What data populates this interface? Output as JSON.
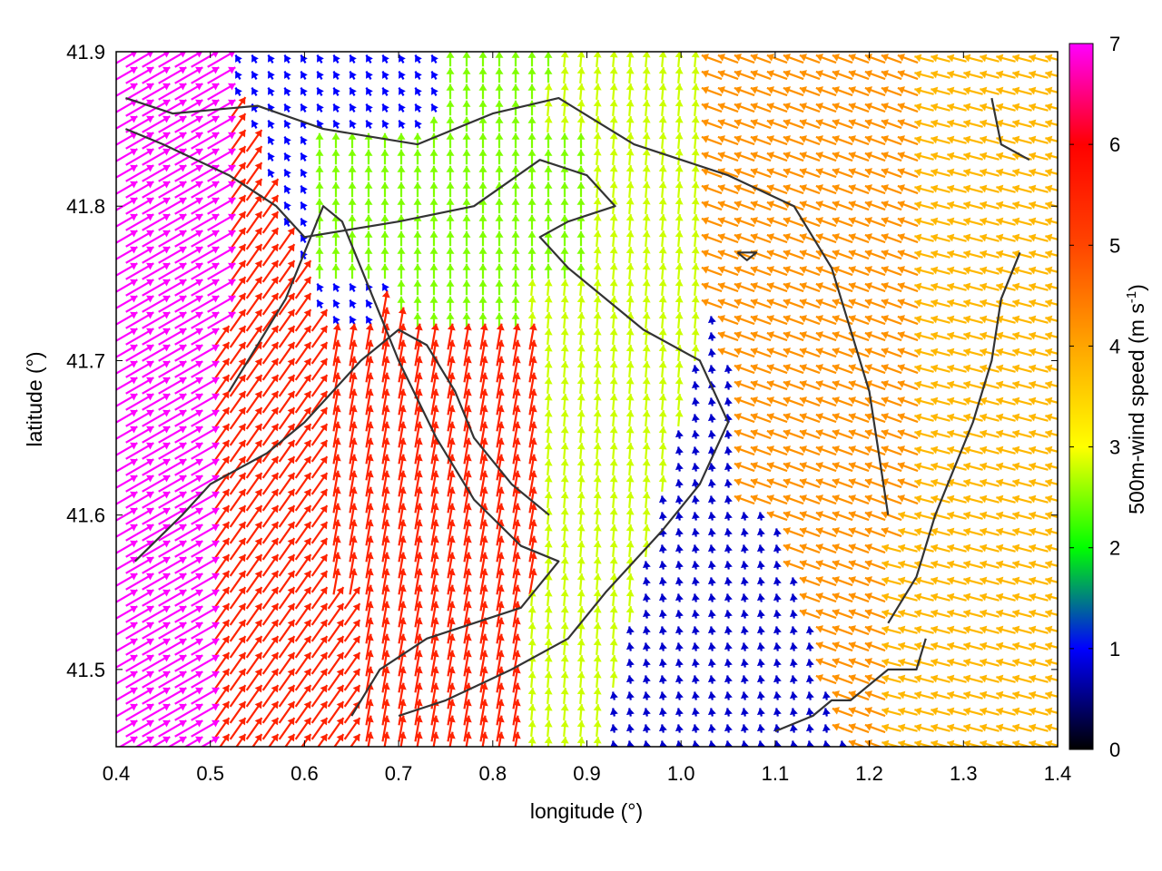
{
  "chart_data": {
    "type": "quiver",
    "xlabel": "longitude (°)",
    "ylabel": "latitude (°)",
    "xlim": [
      0.4,
      1.4
    ],
    "ylim": [
      41.45,
      41.9
    ],
    "xticks": [
      0.4,
      0.5,
      0.6,
      0.7,
      0.8,
      0.9,
      1.0,
      1.1,
      1.2,
      1.3,
      1.4
    ],
    "yticks": [
      41.5,
      41.6,
      41.7,
      41.8,
      41.9
    ],
    "xtick_labels": [
      "0.4",
      "0.5",
      "0.6",
      "0.7",
      "0.8",
      "0.9",
      "1.0",
      "1.1",
      "1.2",
      "1.3",
      "1.4"
    ],
    "ytick_labels": [
      "41.5",
      "41.6",
      "41.7",
      "41.8",
      "41.9"
    ],
    "grid": false,
    "colorbar": {
      "label_main": "500m-wind speed (m s",
      "label_sup": "-1",
      "label_end": ")",
      "range": [
        0,
        7
      ],
      "ticks": [
        0,
        1,
        2,
        3,
        4,
        5,
        6,
        7
      ],
      "tick_labels": [
        "0",
        "1",
        "2",
        "3",
        "4",
        "5",
        "6",
        "7"
      ],
      "colormap": [
        {
          "value": 0,
          "color": "#000000"
        },
        {
          "value": 1,
          "color": "#0000ff"
        },
        {
          "value": 1.5,
          "color": "#008080"
        },
        {
          "value": 2,
          "color": "#00ff00"
        },
        {
          "value": 3,
          "color": "#ffff00"
        },
        {
          "value": 4,
          "color": "#ffa500"
        },
        {
          "value": 5,
          "color": "#ff4500"
        },
        {
          "value": 6,
          "color": "#ff0000"
        },
        {
          "value": 7,
          "color": "#ff00ff"
        }
      ]
    },
    "wind_regions": [
      {
        "lon": [
          0.4,
          0.5
        ],
        "lat": [
          41.45,
          41.72
        ],
        "speed": 7,
        "direction_deg": 150
      },
      {
        "lon": [
          0.5,
          0.62
        ],
        "lat": [
          41.45,
          41.68
        ],
        "speed": 5.5,
        "direction_deg": 125
      },
      {
        "lon": [
          0.62,
          0.85
        ],
        "lat": [
          41.55,
          41.72
        ],
        "speed": 5.5,
        "direction_deg": 100
      },
      {
        "lon": [
          0.85,
          0.98
        ],
        "lat": [
          41.6,
          41.75
        ],
        "speed": 2.8,
        "direction_deg": 95
      },
      {
        "lon": [
          0.6,
          0.9
        ],
        "lat": [
          41.75,
          41.85
        ],
        "speed": 2.5,
        "direction_deg": 90
      },
      {
        "lon": [
          0.62,
          0.75
        ],
        "lat": [
          41.86,
          41.9
        ],
        "speed": 1.0,
        "direction_deg": 60
      },
      {
        "lon": [
          0.95,
          1.1
        ],
        "lat": [
          41.46,
          41.53
        ],
        "speed": 0.8,
        "direction_deg": 80
      },
      {
        "lon": [
          1.05,
          1.25
        ],
        "lat": [
          41.6,
          41.9
        ],
        "speed": 4.2,
        "direction_deg": 20
      },
      {
        "lon": [
          1.25,
          1.4
        ],
        "lat": [
          41.45,
          41.9
        ],
        "speed": 3.8,
        "direction_deg": 15
      }
    ],
    "contour_lines": [
      [
        [
          0.41,
          41.87
        ],
        [
          0.46,
          41.86
        ],
        [
          0.55,
          41.865
        ],
        [
          0.62,
          41.85
        ],
        [
          0.72,
          41.84
        ],
        [
          0.8,
          41.86
        ],
        [
          0.87,
          41.87
        ],
        [
          0.95,
          41.84
        ],
        [
          1.05,
          41.82
        ],
        [
          1.12,
          41.8
        ],
        [
          1.16,
          41.76
        ],
        [
          1.18,
          41.72
        ],
        [
          1.2,
          41.68
        ],
        [
          1.21,
          41.64
        ],
        [
          1.22,
          41.6
        ]
      ],
      [
        [
          0.41,
          41.85
        ],
        [
          0.45,
          41.84
        ],
        [
          0.52,
          41.82
        ],
        [
          0.57,
          41.8
        ],
        [
          0.6,
          41.78
        ],
        [
          0.7,
          41.79
        ],
        [
          0.78,
          41.8
        ],
        [
          0.85,
          41.83
        ],
        [
          0.9,
          41.82
        ],
        [
          0.93,
          41.8
        ],
        [
          0.88,
          41.79
        ],
        [
          0.85,
          41.78
        ],
        [
          0.88,
          41.76
        ],
        [
          0.96,
          41.72
        ],
        [
          1.02,
          41.7
        ],
        [
          1.05,
          41.66
        ],
        [
          1.02,
          41.62
        ],
        [
          0.98,
          41.59
        ],
        [
          0.92,
          41.55
        ],
        [
          0.88,
          41.52
        ],
        [
          0.82,
          41.5
        ],
        [
          0.75,
          41.48
        ],
        [
          0.7,
          41.47
        ]
      ],
      [
        [
          0.52,
          41.68
        ],
        [
          0.55,
          41.71
        ],
        [
          0.58,
          41.74
        ],
        [
          0.6,
          41.77
        ],
        [
          0.62,
          41.8
        ],
        [
          0.64,
          41.79
        ],
        [
          0.68,
          41.73
        ],
        [
          0.7,
          41.7
        ],
        [
          0.74,
          41.65
        ],
        [
          0.78,
          41.61
        ],
        [
          0.83,
          41.58
        ],
        [
          0.87,
          41.57
        ],
        [
          0.83,
          41.54
        ],
        [
          0.78,
          41.53
        ],
        [
          0.73,
          41.52
        ],
        [
          0.68,
          41.5
        ],
        [
          0.65,
          41.47
        ]
      ],
      [
        [
          0.42,
          41.57
        ],
        [
          0.47,
          41.6
        ],
        [
          0.5,
          41.62
        ],
        [
          0.56,
          41.64
        ],
        [
          0.6,
          41.66
        ],
        [
          0.66,
          41.7
        ],
        [
          0.7,
          41.72
        ],
        [
          0.73,
          41.71
        ],
        [
          0.76,
          41.68
        ],
        [
          0.78,
          41.65
        ],
        [
          0.82,
          41.62
        ],
        [
          0.86,
          41.6
        ]
      ],
      [
        [
          1.26,
          41.52
        ],
        [
          1.25,
          41.5
        ],
        [
          1.22,
          41.5
        ],
        [
          1.2,
          41.49
        ],
        [
          1.18,
          41.48
        ],
        [
          1.16,
          41.48
        ],
        [
          1.14,
          41.47
        ],
        [
          1.1,
          41.46
        ]
      ],
      [
        [
          1.33,
          41.87
        ],
        [
          1.34,
          41.84
        ],
        [
          1.37,
          41.83
        ]
      ],
      [
        [
          1.36,
          41.77
        ],
        [
          1.34,
          41.74
        ],
        [
          1.33,
          41.7
        ],
        [
          1.31,
          41.66
        ],
        [
          1.29,
          41.63
        ],
        [
          1.27,
          41.6
        ],
        [
          1.25,
          41.56
        ],
        [
          1.22,
          41.53
        ]
      ],
      [
        [
          1.06,
          41.77
        ],
        [
          1.08,
          41.77
        ],
        [
          1.07,
          41.765
        ],
        [
          1.06,
          41.77
        ]
      ]
    ]
  }
}
